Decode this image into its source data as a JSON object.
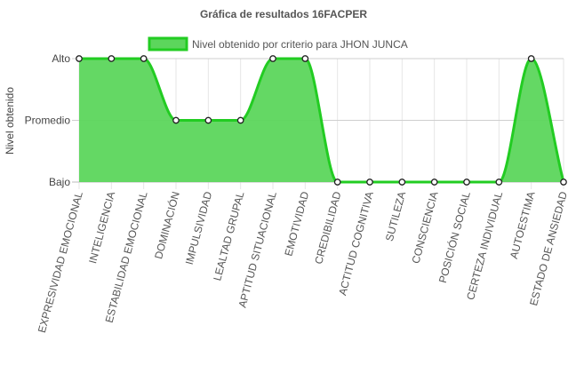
{
  "chart_data": {
    "type": "area",
    "title": "Gráfica de resultados 16FACPER",
    "ylabel": "Nivel obtenido",
    "xlabel": "",
    "y_levels": [
      "Bajo",
      "Promedio",
      "Alto"
    ],
    "ylim": [
      0,
      2
    ],
    "categories": [
      "EXPRESIVIDAD EMOCIONAL",
      "INTELIGENCIA",
      "ESTABILIDAD EMOCIONAL",
      "DOMINACIÓN",
      "IMPULSIVIDAD",
      "LEALTAD GRUPAL",
      "APTITUD SITUACIONAL",
      "EMOTIVIDAD",
      "CREDIBILIDAD",
      "ACTITUD COGNITIVA",
      "SUTILEZA",
      "CONSCIENCIA",
      "POSICIÓN SOCIAL",
      "CERTEZA INDIVIDUAL",
      "AUTOESTIMA",
      "ESTADO DE ANSIEDAD"
    ],
    "series": [
      {
        "name": "Nivel obtenido por criterio para JHON JUNCA",
        "values": [
          2,
          2,
          2,
          1,
          1,
          1,
          2,
          2,
          0,
          0,
          0,
          0,
          0,
          0,
          2,
          0
        ],
        "color": "#22cc22",
        "fill": "#5cd65c"
      }
    ],
    "legend_position": "top",
    "grid": true
  }
}
